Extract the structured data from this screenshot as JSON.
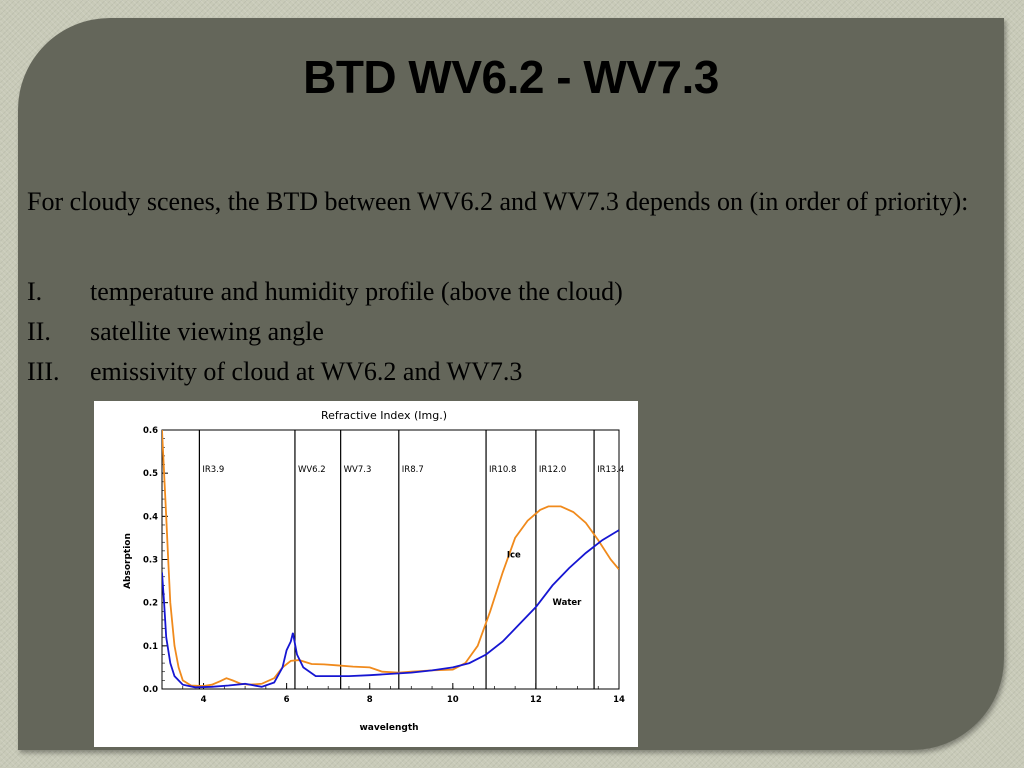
{
  "slide": {
    "title": "BTD WV6.2 - WV7.3",
    "intro": "For cloudy scenes, the BTD between WV6.2 and WV7.3 depends on (in order of priority):",
    "points": [
      {
        "num": "I.",
        "text": "temperature and humidity profile (above the cloud)"
      },
      {
        "num": "II.",
        "text": "satellite viewing angle"
      },
      {
        "num": "III.",
        "text": "emissivity of cloud at WV6.2 and WV7.3"
      }
    ]
  },
  "colors": {
    "slide_bg": "#64665a",
    "ice": "#f08a1c",
    "water": "#1616d2"
  },
  "chart_data": {
    "type": "line",
    "title": "Refractive Index (Img.)",
    "xlabel": "wavelength",
    "ylabel": "Absorption",
    "xlim": [
      3,
      14
    ],
    "ylim": [
      0,
      0.6
    ],
    "x_ticks": [
      4,
      6,
      8,
      10,
      12,
      14
    ],
    "y_ticks": [
      0.0,
      0.1,
      0.2,
      0.3,
      0.4,
      0.5,
      0.6
    ],
    "y_tick_labels": [
      "0.0",
      "0.1",
      "0.2",
      "0.3",
      "0.4",
      "0.5",
      "0.6"
    ],
    "channels": [
      {
        "label": "IR3.9",
        "x": 3.9
      },
      {
        "label": "WV6.2",
        "x": 6.2
      },
      {
        "label": "WV7.3",
        "x": 7.3
      },
      {
        "label": "IR8.7",
        "x": 8.7
      },
      {
        "label": "IR10.8",
        "x": 10.8
      },
      {
        "label": "IR12.0",
        "x": 12.0
      },
      {
        "label": "IR13.4",
        "x": 13.4
      }
    ],
    "series": [
      {
        "name": "Ice",
        "color": "#f08a1c",
        "points": [
          [
            3.0,
            0.6
          ],
          [
            3.05,
            0.5
          ],
          [
            3.1,
            0.4
          ],
          [
            3.15,
            0.3
          ],
          [
            3.2,
            0.2
          ],
          [
            3.3,
            0.1
          ],
          [
            3.4,
            0.05
          ],
          [
            3.5,
            0.02
          ],
          [
            3.7,
            0.008
          ],
          [
            4.0,
            0.007
          ],
          [
            4.2,
            0.01
          ],
          [
            4.4,
            0.018
          ],
          [
            4.55,
            0.025
          ],
          [
            4.7,
            0.02
          ],
          [
            4.9,
            0.012
          ],
          [
            5.1,
            0.01
          ],
          [
            5.4,
            0.012
          ],
          [
            5.7,
            0.025
          ],
          [
            5.9,
            0.05
          ],
          [
            6.1,
            0.065
          ],
          [
            6.3,
            0.067
          ],
          [
            6.6,
            0.058
          ],
          [
            6.9,
            0.057
          ],
          [
            7.2,
            0.055
          ],
          [
            7.6,
            0.052
          ],
          [
            8.0,
            0.05
          ],
          [
            8.3,
            0.04
          ],
          [
            8.7,
            0.038
          ],
          [
            9.0,
            0.04
          ],
          [
            9.5,
            0.043
          ],
          [
            10.0,
            0.045
          ],
          [
            10.3,
            0.06
          ],
          [
            10.6,
            0.1
          ],
          [
            10.9,
            0.18
          ],
          [
            11.2,
            0.27
          ],
          [
            11.5,
            0.35
          ],
          [
            11.8,
            0.39
          ],
          [
            12.1,
            0.415
          ],
          [
            12.3,
            0.423
          ],
          [
            12.6,
            0.423
          ],
          [
            12.9,
            0.41
          ],
          [
            13.2,
            0.385
          ],
          [
            13.5,
            0.345
          ],
          [
            13.8,
            0.3
          ],
          [
            14.0,
            0.277
          ]
        ]
      },
      {
        "name": "Water",
        "color": "#1616d2",
        "points": [
          [
            3.0,
            0.27
          ],
          [
            3.05,
            0.2
          ],
          [
            3.1,
            0.12
          ],
          [
            3.2,
            0.06
          ],
          [
            3.3,
            0.03
          ],
          [
            3.5,
            0.01
          ],
          [
            3.8,
            0.004
          ],
          [
            4.2,
            0.005
          ],
          [
            4.6,
            0.008
          ],
          [
            5.0,
            0.012
          ],
          [
            5.4,
            0.005
          ],
          [
            5.7,
            0.015
          ],
          [
            5.9,
            0.05
          ],
          [
            6.0,
            0.09
          ],
          [
            6.1,
            0.11
          ],
          [
            6.15,
            0.13
          ],
          [
            6.25,
            0.08
          ],
          [
            6.4,
            0.05
          ],
          [
            6.7,
            0.03
          ],
          [
            7.0,
            0.03
          ],
          [
            7.5,
            0.03
          ],
          [
            8.0,
            0.032
          ],
          [
            8.5,
            0.035
          ],
          [
            9.0,
            0.038
          ],
          [
            9.5,
            0.043
          ],
          [
            10.0,
            0.05
          ],
          [
            10.4,
            0.06
          ],
          [
            10.8,
            0.08
          ],
          [
            11.2,
            0.11
          ],
          [
            11.6,
            0.15
          ],
          [
            12.0,
            0.19
          ],
          [
            12.4,
            0.24
          ],
          [
            12.8,
            0.28
          ],
          [
            13.2,
            0.315
          ],
          [
            13.6,
            0.345
          ],
          [
            14.0,
            0.368
          ]
        ]
      }
    ],
    "series_labels": [
      {
        "text": "Ice",
        "x": 11.3,
        "y": 0.305
      },
      {
        "text": "Water",
        "x": 12.4,
        "y": 0.195
      }
    ]
  }
}
